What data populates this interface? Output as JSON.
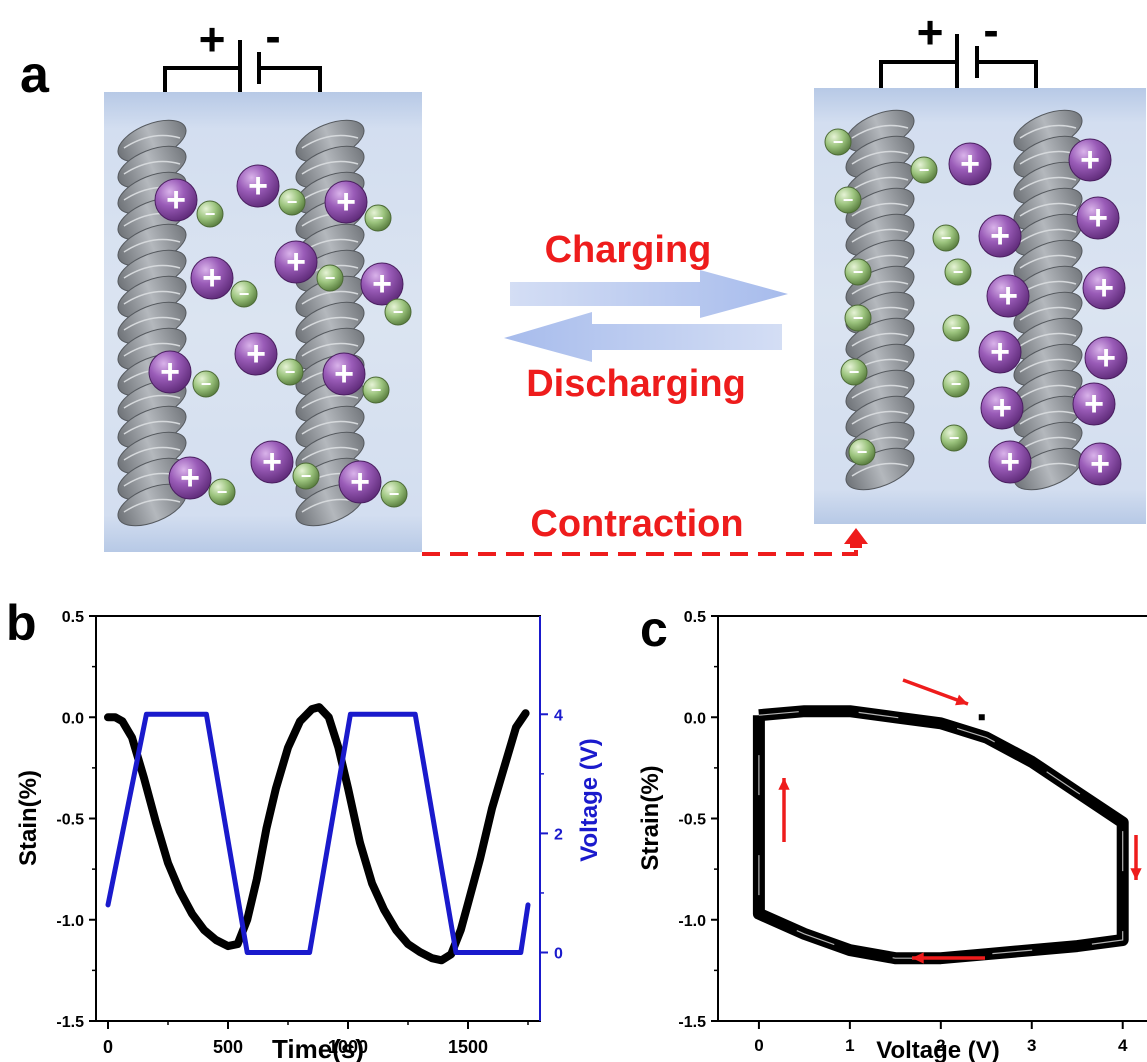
{
  "panel_a": {
    "label": "a",
    "battery_plus": "+",
    "battery_minus": "-",
    "arrow_forward_label": "Charging",
    "arrow_backward_label": "Discharging",
    "contraction_label": "Contraction",
    "ion_positive_symbol": "+",
    "ion_negative_symbol": "−",
    "colors": {
      "text_red": "#ee1c1c",
      "cation": "#8e4ea8",
      "anion": "#8fb96e",
      "electrolyte": "#c9d8ee",
      "arrow": "#b9c9ee"
    }
  },
  "chart_data": [
    {
      "panel_label": "b",
      "type": "line",
      "xlabel": "Time(s)",
      "ylabel": "Stain(%)",
      "y2label": "Voltage (V)",
      "xlim": [
        -50,
        1800
      ],
      "ylim": [
        -1.5,
        0.5
      ],
      "y2lim": [
        -1.15,
        5.65
      ],
      "xticks": [
        "0",
        "500",
        "1000",
        "1500"
      ],
      "yticks": [
        "0.5",
        "0.0",
        "-0.5",
        "-1.0",
        "-1.5"
      ],
      "y2ticks": [
        "0",
        "2",
        "4"
      ],
      "series": [
        {
          "axis": "left",
          "color": "#000000",
          "x": [
            0,
            30,
            60,
            100,
            150,
            200,
            250,
            300,
            350,
            400,
            450,
            500,
            540,
            580,
            620,
            660,
            700,
            750,
            800,
            850,
            880,
            920,
            960,
            1000,
            1050,
            1100,
            1150,
            1200,
            1250,
            1300,
            1350,
            1390,
            1430,
            1470,
            1500,
            1550,
            1600,
            1650,
            1700,
            1740
          ],
          "y": [
            0.0,
            0.0,
            -0.02,
            -0.1,
            -0.3,
            -0.52,
            -0.72,
            -0.86,
            -0.97,
            -1.05,
            -1.1,
            -1.13,
            -1.12,
            -1.0,
            -0.8,
            -0.55,
            -0.35,
            -0.15,
            -0.02,
            0.04,
            0.05,
            0.0,
            -0.15,
            -0.35,
            -0.62,
            -0.82,
            -0.95,
            -1.05,
            -1.12,
            -1.16,
            -1.19,
            -1.2,
            -1.17,
            -1.05,
            -0.92,
            -0.7,
            -0.45,
            -0.25,
            -0.05,
            0.02
          ]
        },
        {
          "axis": "right",
          "color": "#1a1acc",
          "x": [
            0,
            160,
            410,
            580,
            840,
            1010,
            1280,
            1450,
            1720,
            1750
          ],
          "y": [
            0.8,
            4.0,
            4.0,
            0.0,
            0.0,
            4.0,
            4.0,
            0.0,
            0.0,
            0.8
          ]
        }
      ]
    },
    {
      "panel_label": "c",
      "type": "line",
      "xlabel": "Voltage (V)",
      "ylabel": "Strain(%)",
      "xlim": [
        -0.45,
        4.3
      ],
      "ylim": [
        -1.5,
        0.5
      ],
      "xticks": [
        "0",
        "1",
        "2",
        "3",
        "4"
      ],
      "yticks": [
        "0.5",
        "0.0",
        "-0.5",
        "-1.0",
        "-1.5"
      ],
      "series": [
        {
          "color": "#000000",
          "x": [
            0,
            0.5,
            1.0,
            1.5,
            2.0,
            2.5,
            3.0,
            3.5,
            4.0,
            4.0,
            3.5,
            3.0,
            2.5,
            2.0,
            1.5,
            1.0,
            0.5,
            0.0,
            0.0
          ],
          "y": [
            0.01,
            0.03,
            0.03,
            0.0,
            -0.03,
            -0.1,
            -0.22,
            -0.37,
            -0.52,
            -1.1,
            -1.13,
            -1.15,
            -1.17,
            -1.19,
            -1.19,
            -1.15,
            -1.07,
            -0.97,
            0.01
          ]
        }
      ],
      "annotations": [
        {
          "type": "arrow",
          "direction": "up",
          "color": "#ee1c1c"
        },
        {
          "type": "arrow",
          "direction": "down-right",
          "color": "#ee1c1c"
        },
        {
          "type": "arrow",
          "direction": "down",
          "color": "#ee1c1c"
        },
        {
          "type": "arrow",
          "direction": "left",
          "color": "#ee1c1c"
        }
      ]
    }
  ]
}
